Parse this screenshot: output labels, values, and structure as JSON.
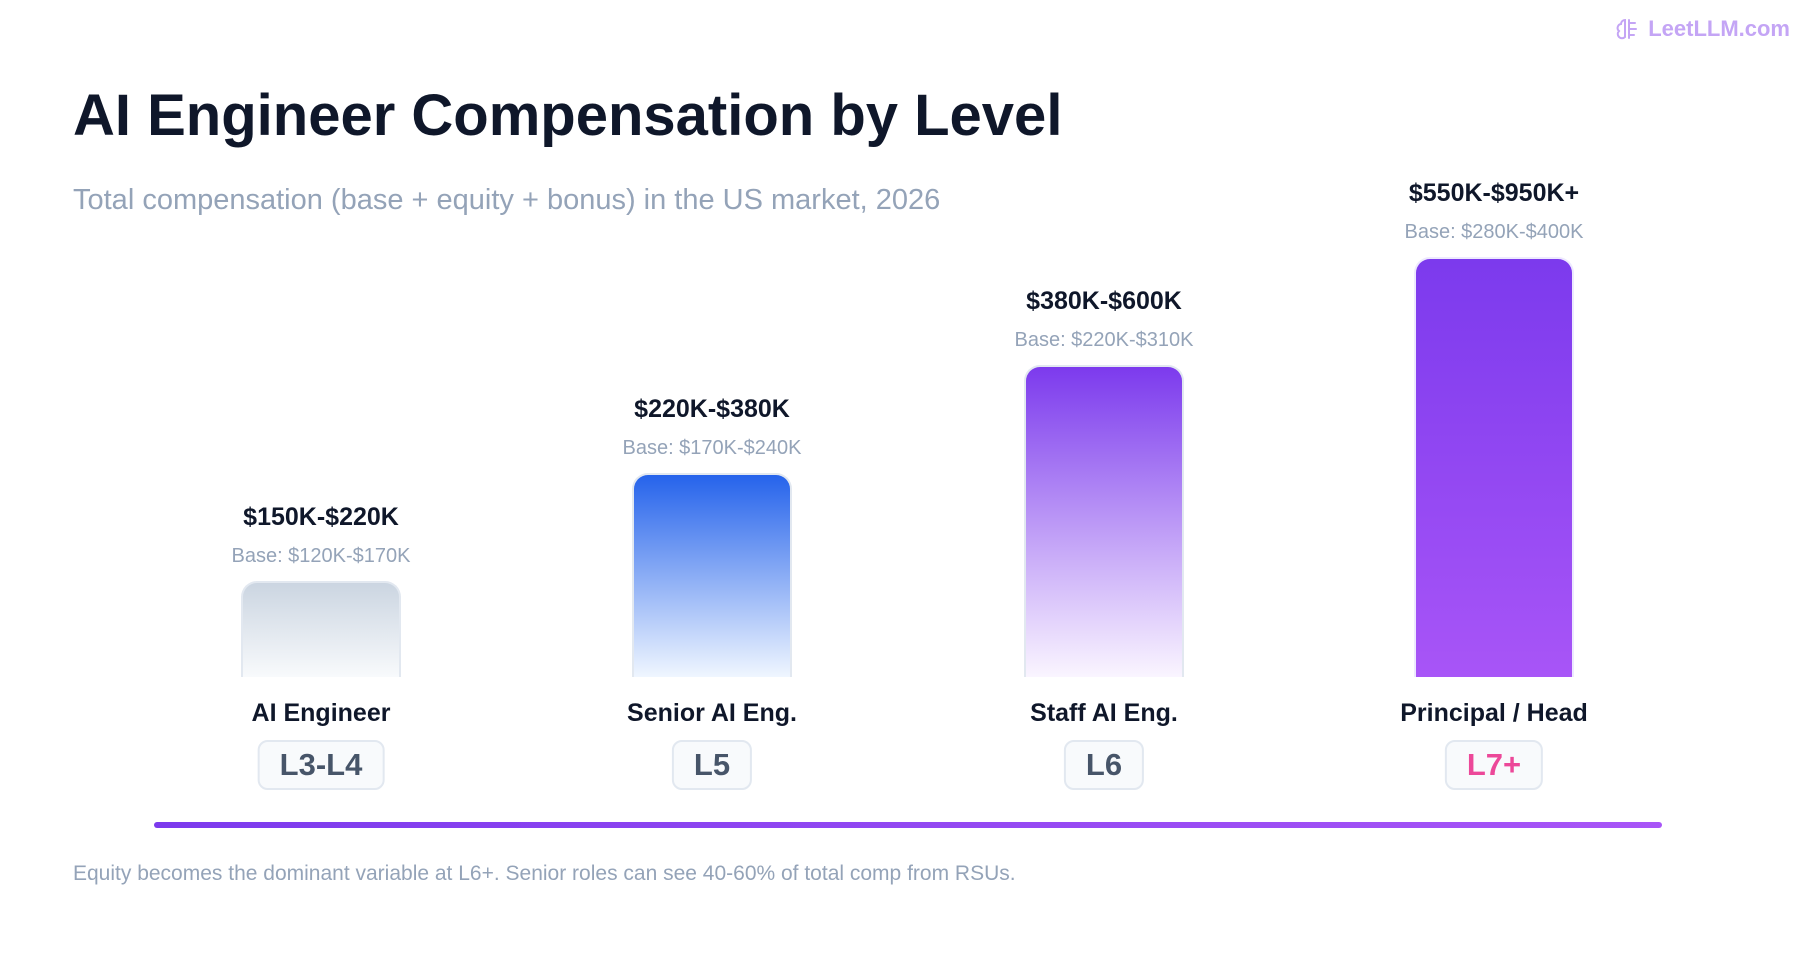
{
  "brand": "LeetLLM.com",
  "header": {
    "title": "AI Engineer Compensation by Level",
    "subtitle": "Total compensation (base + equity + bonus) in the US market, 2026"
  },
  "levels": [
    {
      "range": "$150K-$220K",
      "base": "Base: $120K-$170K",
      "role": "AI Engineer",
      "level": "L3-L4"
    },
    {
      "range": "$220K-$380K",
      "base": "Base: $170K-$240K",
      "role": "Senior AI Eng.",
      "level": "L5"
    },
    {
      "range": "$380K-$600K",
      "base": "Base: $220K-$310K",
      "role": "Staff AI Eng.",
      "level": "L6"
    },
    {
      "range": "$550K-$950K+",
      "base": "Base: $280K-$400K",
      "role": "Principal / Head",
      "level": "L7+"
    }
  ],
  "footnote": "Equity becomes the dominant variable at L6+. Senior roles can see 40-60% of total comp from RSUs."
}
